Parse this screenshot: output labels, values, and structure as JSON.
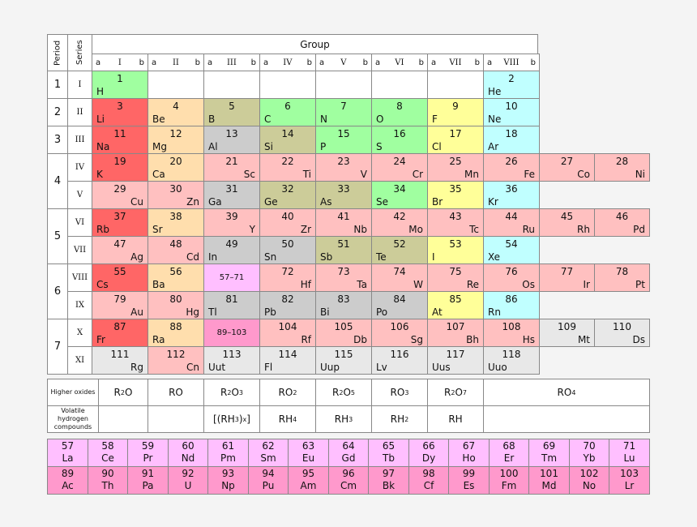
{
  "header": {
    "period_label": "Period",
    "series_label": "Series",
    "group_label": "Group",
    "groups": [
      {
        "a": "a",
        "roman": "I",
        "b": "b"
      },
      {
        "a": "a",
        "roman": "II",
        "b": "b"
      },
      {
        "a": "a",
        "roman": "III",
        "b": "b"
      },
      {
        "a": "a",
        "roman": "IV",
        "b": "b"
      },
      {
        "a": "a",
        "roman": "V",
        "b": "b"
      },
      {
        "a": "a",
        "roman": "VI",
        "b": "b"
      },
      {
        "a": "a",
        "roman": "VII",
        "b": "b"
      },
      {
        "a": "a",
        "roman": "VIII",
        "b": "b"
      }
    ]
  },
  "colors": {
    "alkali": "#ff6666",
    "alkaline_earth": "#ffdead",
    "transition": "#ffc0c0",
    "poor_metal": "#cccccc",
    "metalloid": "#cccc99",
    "nonmetal": "#a0ffa0",
    "halogen": "#ffff99",
    "noble": "#c0ffff",
    "lanthanide": "#ffbfff",
    "actinide": "#ff99cc",
    "unknown": "#e8e8e8"
  },
  "periods": [
    {
      "label": "1",
      "rows": [
        0
      ]
    },
    {
      "label": "2",
      "rows": [
        1
      ]
    },
    {
      "label": "3",
      "rows": [
        2
      ]
    },
    {
      "label": "4",
      "rows": [
        3,
        4
      ]
    },
    {
      "label": "5",
      "rows": [
        5,
        6
      ]
    },
    {
      "label": "6",
      "rows": [
        7,
        8
      ]
    },
    {
      "label": "7",
      "rows": [
        9,
        10
      ]
    }
  ],
  "series": [
    "I",
    "II",
    "III",
    "IV",
    "V",
    "VI",
    "VII",
    "VIII",
    "IX",
    "X",
    "XI"
  ],
  "elements": [
    {
      "row": 0,
      "col": 0,
      "num": "1",
      "sym": "H",
      "side": "l",
      "cat": "nonmetal"
    },
    {
      "row": 0,
      "col": 7,
      "num": "2",
      "sym": "He",
      "side": "l",
      "cat": "noble"
    },
    {
      "row": 1,
      "col": 0,
      "num": "3",
      "sym": "Li",
      "side": "l",
      "cat": "alkali"
    },
    {
      "row": 1,
      "col": 1,
      "num": "4",
      "sym": "Be",
      "side": "l",
      "cat": "alkaline_earth"
    },
    {
      "row": 1,
      "col": 2,
      "num": "5",
      "sym": "B",
      "side": "l",
      "cat": "metalloid"
    },
    {
      "row": 1,
      "col": 3,
      "num": "6",
      "sym": "C",
      "side": "l",
      "cat": "nonmetal"
    },
    {
      "row": 1,
      "col": 4,
      "num": "7",
      "sym": "N",
      "side": "l",
      "cat": "nonmetal"
    },
    {
      "row": 1,
      "col": 5,
      "num": "8",
      "sym": "O",
      "side": "l",
      "cat": "nonmetal"
    },
    {
      "row": 1,
      "col": 6,
      "num": "9",
      "sym": "F",
      "side": "l",
      "cat": "halogen"
    },
    {
      "row": 1,
      "col": 7,
      "num": "10",
      "sym": "Ne",
      "side": "l",
      "cat": "noble"
    },
    {
      "row": 2,
      "col": 0,
      "num": "11",
      "sym": "Na",
      "side": "l",
      "cat": "alkali"
    },
    {
      "row": 2,
      "col": 1,
      "num": "12",
      "sym": "Mg",
      "side": "l",
      "cat": "alkaline_earth"
    },
    {
      "row": 2,
      "col": 2,
      "num": "13",
      "sym": "Al",
      "side": "l",
      "cat": "poor_metal"
    },
    {
      "row": 2,
      "col": 3,
      "num": "14",
      "sym": "Si",
      "side": "l",
      "cat": "metalloid"
    },
    {
      "row": 2,
      "col": 4,
      "num": "15",
      "sym": "P",
      "side": "l",
      "cat": "nonmetal"
    },
    {
      "row": 2,
      "col": 5,
      "num": "16",
      "sym": "S",
      "side": "l",
      "cat": "nonmetal"
    },
    {
      "row": 2,
      "col": 6,
      "num": "17",
      "sym": "Cl",
      "side": "l",
      "cat": "halogen"
    },
    {
      "row": 2,
      "col": 7,
      "num": "18",
      "sym": "Ar",
      "side": "l",
      "cat": "noble"
    },
    {
      "row": 3,
      "col": 0,
      "num": "19",
      "sym": "K",
      "side": "l",
      "cat": "alkali"
    },
    {
      "row": 3,
      "col": 1,
      "num": "20",
      "sym": "Ca",
      "side": "l",
      "cat": "alkaline_earth"
    },
    {
      "row": 3,
      "col": 2,
      "num": "21",
      "sym": "Sc",
      "side": "r",
      "cat": "transition"
    },
    {
      "row": 3,
      "col": 3,
      "num": "22",
      "sym": "Ti",
      "side": "r",
      "cat": "transition"
    },
    {
      "row": 3,
      "col": 4,
      "num": "23",
      "sym": "V",
      "side": "r",
      "cat": "transition"
    },
    {
      "row": 3,
      "col": 5,
      "num": "24",
      "sym": "Cr",
      "side": "r",
      "cat": "transition"
    },
    {
      "row": 3,
      "col": 6,
      "num": "25",
      "sym": "Mn",
      "side": "r",
      "cat": "transition"
    },
    {
      "row": 3,
      "col": 7,
      "num": "26",
      "sym": "Fe",
      "side": "r",
      "cat": "transition"
    },
    {
      "row": 3,
      "col": 8,
      "num": "27",
      "sym": "Co",
      "side": "r",
      "cat": "transition"
    },
    {
      "row": 3,
      "col": 9,
      "num": "28",
      "sym": "Ni",
      "side": "r",
      "cat": "transition"
    },
    {
      "row": 4,
      "col": 0,
      "num": "29",
      "sym": "Cu",
      "side": "r",
      "cat": "transition"
    },
    {
      "row": 4,
      "col": 1,
      "num": "30",
      "sym": "Zn",
      "side": "r",
      "cat": "transition"
    },
    {
      "row": 4,
      "col": 2,
      "num": "31",
      "sym": "Ga",
      "side": "l",
      "cat": "poor_metal"
    },
    {
      "row": 4,
      "col": 3,
      "num": "32",
      "sym": "Ge",
      "side": "l",
      "cat": "metalloid"
    },
    {
      "row": 4,
      "col": 4,
      "num": "33",
      "sym": "As",
      "side": "l",
      "cat": "metalloid"
    },
    {
      "row": 4,
      "col": 5,
      "num": "34",
      "sym": "Se",
      "side": "l",
      "cat": "nonmetal"
    },
    {
      "row": 4,
      "col": 6,
      "num": "35",
      "sym": "Br",
      "side": "l",
      "cat": "halogen"
    },
    {
      "row": 4,
      "col": 7,
      "num": "36",
      "sym": "Kr",
      "side": "l",
      "cat": "noble"
    },
    {
      "row": 5,
      "col": 0,
      "num": "37",
      "sym": "Rb",
      "side": "l",
      "cat": "alkali"
    },
    {
      "row": 5,
      "col": 1,
      "num": "38",
      "sym": "Sr",
      "side": "l",
      "cat": "alkaline_earth"
    },
    {
      "row": 5,
      "col": 2,
      "num": "39",
      "sym": "Y",
      "side": "r",
      "cat": "transition"
    },
    {
      "row": 5,
      "col": 3,
      "num": "40",
      "sym": "Zr",
      "side": "r",
      "cat": "transition"
    },
    {
      "row": 5,
      "col": 4,
      "num": "41",
      "sym": "Nb",
      "side": "r",
      "cat": "transition"
    },
    {
      "row": 5,
      "col": 5,
      "num": "42",
      "sym": "Mo",
      "side": "r",
      "cat": "transition"
    },
    {
      "row": 5,
      "col": 6,
      "num": "43",
      "sym": "Tc",
      "side": "r",
      "cat": "transition"
    },
    {
      "row": 5,
      "col": 7,
      "num": "44",
      "sym": "Ru",
      "side": "r",
      "cat": "transition"
    },
    {
      "row": 5,
      "col": 8,
      "num": "45",
      "sym": "Rh",
      "side": "r",
      "cat": "transition"
    },
    {
      "row": 5,
      "col": 9,
      "num": "46",
      "sym": "Pd",
      "side": "r",
      "cat": "transition"
    },
    {
      "row": 6,
      "col": 0,
      "num": "47",
      "sym": "Ag",
      "side": "r",
      "cat": "transition"
    },
    {
      "row": 6,
      "col": 1,
      "num": "48",
      "sym": "Cd",
      "side": "r",
      "cat": "transition"
    },
    {
      "row": 6,
      "col": 2,
      "num": "49",
      "sym": "In",
      "side": "l",
      "cat": "poor_metal"
    },
    {
      "row": 6,
      "col": 3,
      "num": "50",
      "sym": "Sn",
      "side": "l",
      "cat": "poor_metal"
    },
    {
      "row": 6,
      "col": 4,
      "num": "51",
      "sym": "Sb",
      "side": "l",
      "cat": "metalloid"
    },
    {
      "row": 6,
      "col": 5,
      "num": "52",
      "sym": "Te",
      "side": "l",
      "cat": "metalloid"
    },
    {
      "row": 6,
      "col": 6,
      "num": "53",
      "sym": "I",
      "side": "l",
      "cat": "halogen"
    },
    {
      "row": 6,
      "col": 7,
      "num": "54",
      "sym": "Xe",
      "side": "l",
      "cat": "noble"
    },
    {
      "row": 7,
      "col": 0,
      "num": "55",
      "sym": "Cs",
      "side": "l",
      "cat": "alkali"
    },
    {
      "row": 7,
      "col": 1,
      "num": "56",
      "sym": "Ba",
      "side": "l",
      "cat": "alkaline_earth"
    },
    {
      "row": 7,
      "col": 2,
      "range": "57–71",
      "cat": "lanthanide"
    },
    {
      "row": 7,
      "col": 3,
      "num": "72",
      "sym": "Hf",
      "side": "r",
      "cat": "transition"
    },
    {
      "row": 7,
      "col": 4,
      "num": "73",
      "sym": "Ta",
      "side": "r",
      "cat": "transition"
    },
    {
      "row": 7,
      "col": 5,
      "num": "74",
      "sym": "W",
      "side": "r",
      "cat": "transition"
    },
    {
      "row": 7,
      "col": 6,
      "num": "75",
      "sym": "Re",
      "side": "r",
      "cat": "transition"
    },
    {
      "row": 7,
      "col": 7,
      "num": "76",
      "sym": "Os",
      "side": "r",
      "cat": "transition"
    },
    {
      "row": 7,
      "col": 8,
      "num": "77",
      "sym": "Ir",
      "side": "r",
      "cat": "transition"
    },
    {
      "row": 7,
      "col": 9,
      "num": "78",
      "sym": "Pt",
      "side": "r",
      "cat": "transition"
    },
    {
      "row": 8,
      "col": 0,
      "num": "79",
      "sym": "Au",
      "side": "r",
      "cat": "transition"
    },
    {
      "row": 8,
      "col": 1,
      "num": "80",
      "sym": "Hg",
      "side": "r",
      "cat": "transition"
    },
    {
      "row": 8,
      "col": 2,
      "num": "81",
      "sym": "Tl",
      "side": "l",
      "cat": "poor_metal"
    },
    {
      "row": 8,
      "col": 3,
      "num": "82",
      "sym": "Pb",
      "side": "l",
      "cat": "poor_metal"
    },
    {
      "row": 8,
      "col": 4,
      "num": "83",
      "sym": "Bi",
      "side": "l",
      "cat": "poor_metal"
    },
    {
      "row": 8,
      "col": 5,
      "num": "84",
      "sym": "Po",
      "side": "l",
      "cat": "poor_metal"
    },
    {
      "row": 8,
      "col": 6,
      "num": "85",
      "sym": "At",
      "side": "l",
      "cat": "halogen"
    },
    {
      "row": 8,
      "col": 7,
      "num": "86",
      "sym": "Rn",
      "side": "l",
      "cat": "noble"
    },
    {
      "row": 9,
      "col": 0,
      "num": "87",
      "sym": "Fr",
      "side": "l",
      "cat": "alkali"
    },
    {
      "row": 9,
      "col": 1,
      "num": "88",
      "sym": "Ra",
      "side": "l",
      "cat": "alkaline_earth"
    },
    {
      "row": 9,
      "col": 2,
      "range": "89–103",
      "cat": "actinide"
    },
    {
      "row": 9,
      "col": 3,
      "num": "104",
      "sym": "Rf",
      "side": "r",
      "cat": "transition"
    },
    {
      "row": 9,
      "col": 4,
      "num": "105",
      "sym": "Db",
      "side": "r",
      "cat": "transition"
    },
    {
      "row": 9,
      "col": 5,
      "num": "106",
      "sym": "Sg",
      "side": "r",
      "cat": "transition"
    },
    {
      "row": 9,
      "col": 6,
      "num": "107",
      "sym": "Bh",
      "side": "r",
      "cat": "transition"
    },
    {
      "row": 9,
      "col": 7,
      "num": "108",
      "sym": "Hs",
      "side": "r",
      "cat": "transition"
    },
    {
      "row": 9,
      "col": 8,
      "num": "109",
      "sym": "Mt",
      "side": "r",
      "cat": "unknown"
    },
    {
      "row": 9,
      "col": 9,
      "num": "110",
      "sym": "Ds",
      "side": "r",
      "cat": "unknown"
    },
    {
      "row": 10,
      "col": 0,
      "num": "111",
      "sym": "Rg",
      "side": "r",
      "cat": "unknown"
    },
    {
      "row": 10,
      "col": 1,
      "num": "112",
      "sym": "Cn",
      "side": "r",
      "cat": "transition"
    },
    {
      "row": 10,
      "col": 2,
      "num": "113",
      "sym": "Uut",
      "side": "l",
      "cat": "unknown"
    },
    {
      "row": 10,
      "col": 3,
      "num": "114",
      "sym": "Fl",
      "side": "l",
      "cat": "unknown"
    },
    {
      "row": 10,
      "col": 4,
      "num": "115",
      "sym": "Uup",
      "side": "l",
      "cat": "unknown"
    },
    {
      "row": 10,
      "col": 5,
      "num": "116",
      "sym": "Lv",
      "side": "l",
      "cat": "unknown"
    },
    {
      "row": 10,
      "col": 6,
      "num": "117",
      "sym": "Uus",
      "side": "l",
      "cat": "unknown"
    },
    {
      "row": 10,
      "col": 7,
      "num": "118",
      "sym": "Uuo",
      "side": "l",
      "cat": "unknown"
    }
  ],
  "compounds": {
    "oxides_label": "Higher oxides",
    "hydrogen_label": "Volatile hydrogen compounds",
    "oxides": [
      {
        "base": "R",
        "s1": "2",
        "mid": "O",
        "s2": ""
      },
      {
        "base": "RO",
        "s1": "",
        "mid": "",
        "s2": ""
      },
      {
        "base": "R",
        "s1": "2",
        "mid": "O",
        "s2": "3"
      },
      {
        "base": "RO",
        "s1": "2",
        "mid": "",
        "s2": ""
      },
      {
        "base": "R",
        "s1": "2",
        "mid": "O",
        "s2": "5"
      },
      {
        "base": "RO",
        "s1": "3",
        "mid": "",
        "s2": ""
      },
      {
        "base": "R",
        "s1": "2",
        "mid": "O",
        "s2": "7"
      },
      {
        "base": "RO",
        "s1": "4",
        "mid": "",
        "s2": ""
      }
    ],
    "hydrides": [
      {
        "text": ""
      },
      {
        "text": ""
      },
      {
        "text": "[(RH",
        "s": "3",
        "text2": ")",
        "s2": "x",
        "text3": "]"
      },
      {
        "text": "RH",
        "s": "4"
      },
      {
        "text": "RH",
        "s": "3"
      },
      {
        "text": "RH",
        "s": "2"
      },
      {
        "text": "RH",
        "s": ""
      },
      {
        "text": ""
      }
    ]
  },
  "lanthanides": [
    {
      "num": "57",
      "sym": "La"
    },
    {
      "num": "58",
      "sym": "Ce"
    },
    {
      "num": "59",
      "sym": "Pr"
    },
    {
      "num": "60",
      "sym": "Nd"
    },
    {
      "num": "61",
      "sym": "Pm"
    },
    {
      "num": "62",
      "sym": "Sm"
    },
    {
      "num": "63",
      "sym": "Eu"
    },
    {
      "num": "64",
      "sym": "Gd"
    },
    {
      "num": "65",
      "sym": "Tb"
    },
    {
      "num": "66",
      "sym": "Dy"
    },
    {
      "num": "67",
      "sym": "Ho"
    },
    {
      "num": "68",
      "sym": "Er"
    },
    {
      "num": "69",
      "sym": "Tm"
    },
    {
      "num": "70",
      "sym": "Yb"
    },
    {
      "num": "71",
      "sym": "Lu"
    }
  ],
  "actinides": [
    {
      "num": "89",
      "sym": "Ac"
    },
    {
      "num": "90",
      "sym": "Th"
    },
    {
      "num": "91",
      "sym": "Pa"
    },
    {
      "num": "92",
      "sym": "U"
    },
    {
      "num": "93",
      "sym": "Np"
    },
    {
      "num": "94",
      "sym": "Pu"
    },
    {
      "num": "95",
      "sym": "Am"
    },
    {
      "num": "96",
      "sym": "Cm"
    },
    {
      "num": "97",
      "sym": "Bk"
    },
    {
      "num": "98",
      "sym": "Cf"
    },
    {
      "num": "99",
      "sym": "Es"
    },
    {
      "num": "100",
      "sym": "Fm"
    },
    {
      "num": "101",
      "sym": "Md"
    },
    {
      "num": "102",
      "sym": "No"
    },
    {
      "num": "103",
      "sym": "Lr"
    }
  ]
}
